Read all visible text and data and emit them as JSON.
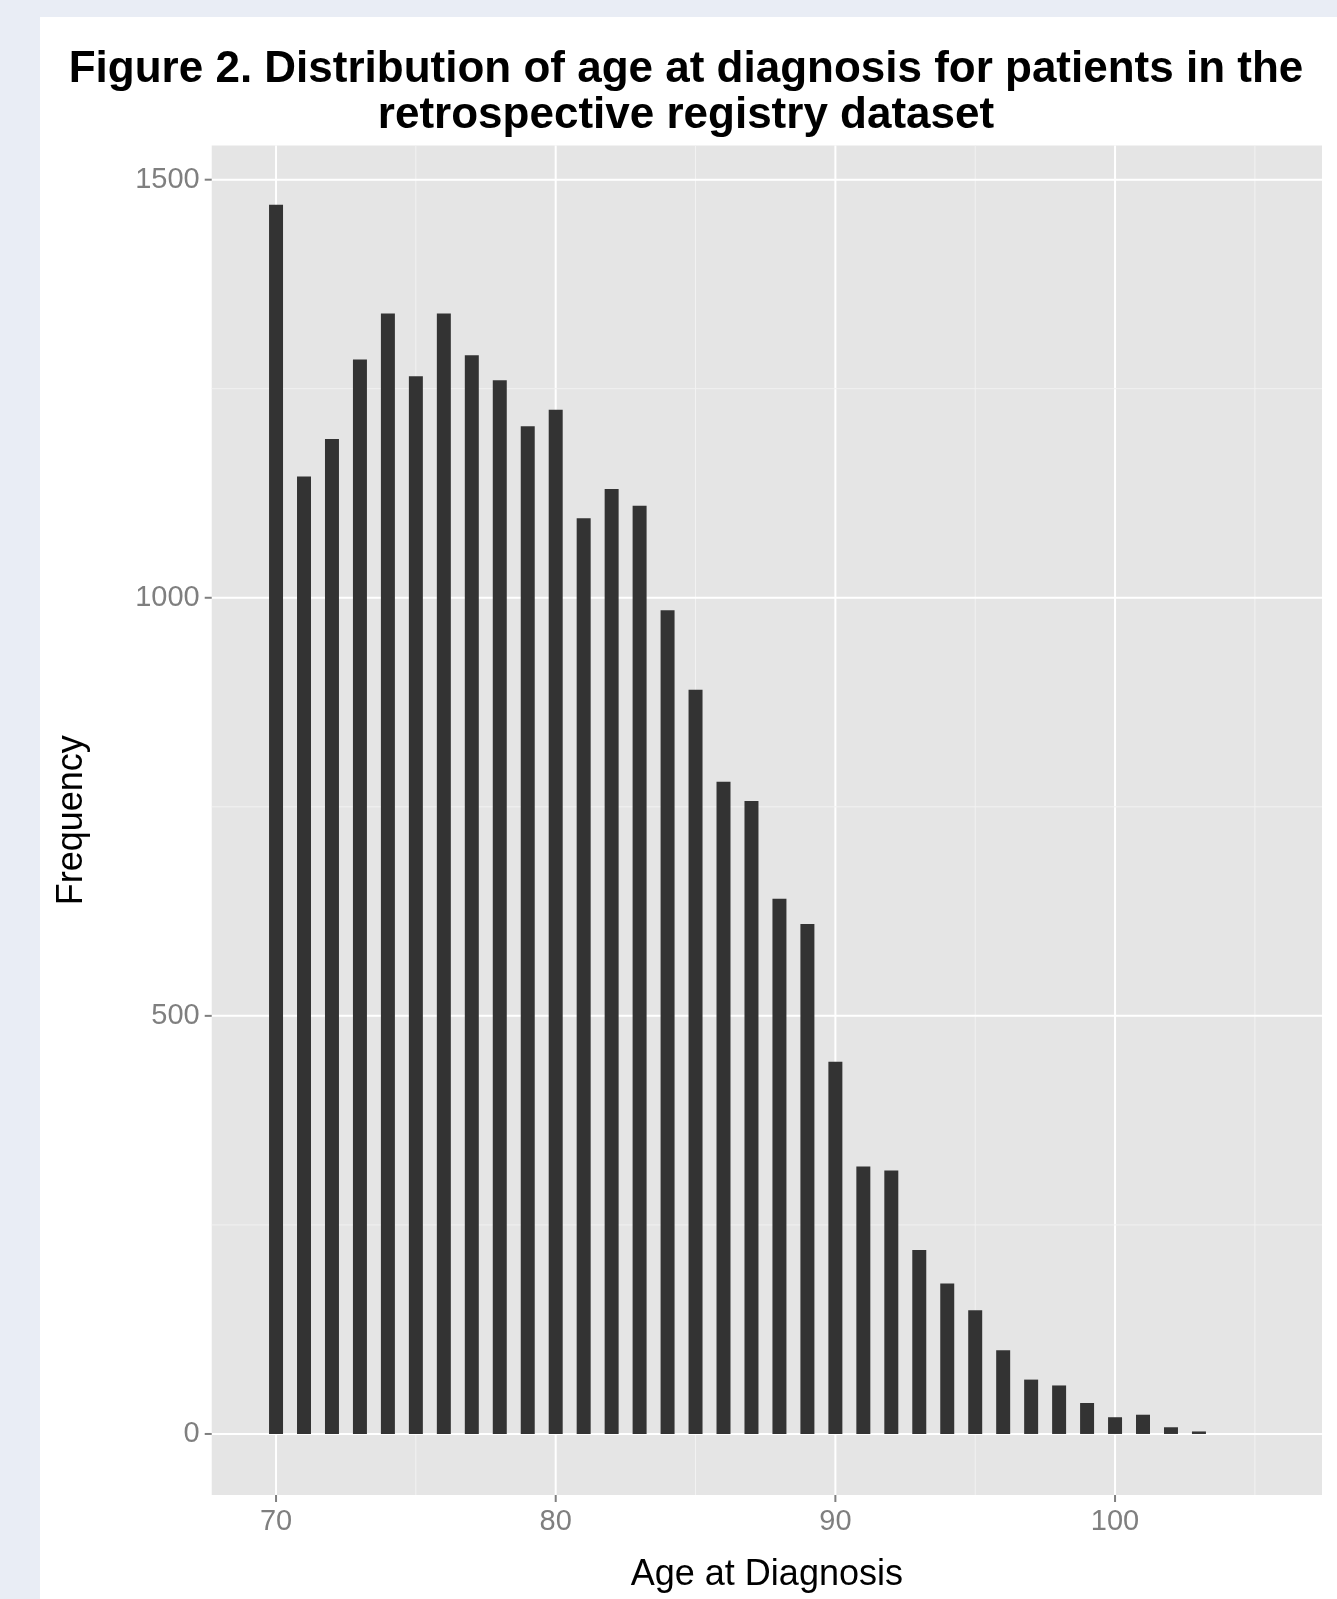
{
  "chart_data": {
    "type": "bar",
    "title": "Figure 2. Distribution of age at diagnosis for patients in the retrospective registry dataset",
    "xlabel": "Age at Diagnosis",
    "ylabel": "Frequency",
    "x": [
      70,
      71,
      72,
      73,
      74,
      75,
      76,
      77,
      78,
      79,
      80,
      81,
      82,
      83,
      84,
      85,
      86,
      87,
      88,
      89,
      90,
      91,
      92,
      93,
      94,
      95,
      96,
      97,
      98,
      99,
      100,
      101,
      102,
      103
    ],
    "values": [
      1470,
      1145,
      1190,
      1285,
      1340,
      1265,
      1340,
      1290,
      1260,
      1205,
      1225,
      1095,
      1130,
      1110,
      985,
      890,
      780,
      757,
      640,
      610,
      445,
      320,
      315,
      220,
      180,
      148,
      100,
      65,
      58,
      37,
      20,
      23,
      8,
      3
    ],
    "color": "#333333",
    "xlim": [
      67.7,
      107.4
    ],
    "xticks": [
      70,
      {
        "value": 75,
        "label": null
      },
      80,
      {
        "value": 85,
        "label": null
      },
      90,
      {
        "value": 95,
        "label": null
      },
      100,
      {
        "value": 105,
        "label": null
      }
    ],
    "ylim": [
      -73,
      1541
    ],
    "yticks": [
      0,
      {
        "value": 250,
        "label": null
      },
      500,
      {
        "value": 750,
        "label": null
      },
      1000,
      {
        "value": 1250,
        "label": null
      },
      1500
    ],
    "grid": true
  }
}
